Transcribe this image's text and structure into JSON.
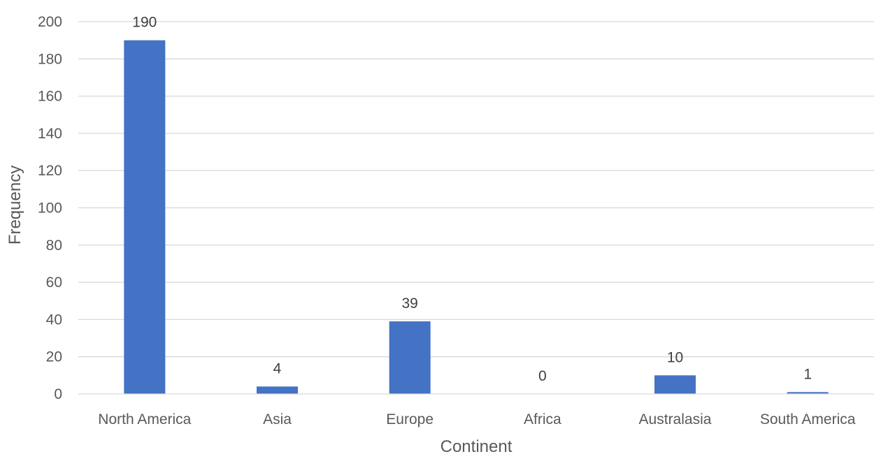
{
  "chart_data": {
    "type": "bar",
    "xlabel": "Continent",
    "ylabel": "Frequency",
    "categories": [
      "North America",
      "Asia",
      "Europe",
      "Africa",
      "Australasia",
      "South America"
    ],
    "values": [
      190,
      4,
      39,
      0,
      10,
      1
    ],
    "data_labels": [
      "190",
      "4",
      "39",
      "0",
      "10",
      "1"
    ],
    "yticks": [
      "0",
      "20",
      "40",
      "60",
      "80",
      "100",
      "120",
      "140",
      "160",
      "180",
      "200"
    ],
    "ylim": [
      0,
      200
    ],
    "grid": true,
    "legend": "none",
    "bar_color": "#4472c4",
    "grid_color": "#d9d9d9"
  }
}
